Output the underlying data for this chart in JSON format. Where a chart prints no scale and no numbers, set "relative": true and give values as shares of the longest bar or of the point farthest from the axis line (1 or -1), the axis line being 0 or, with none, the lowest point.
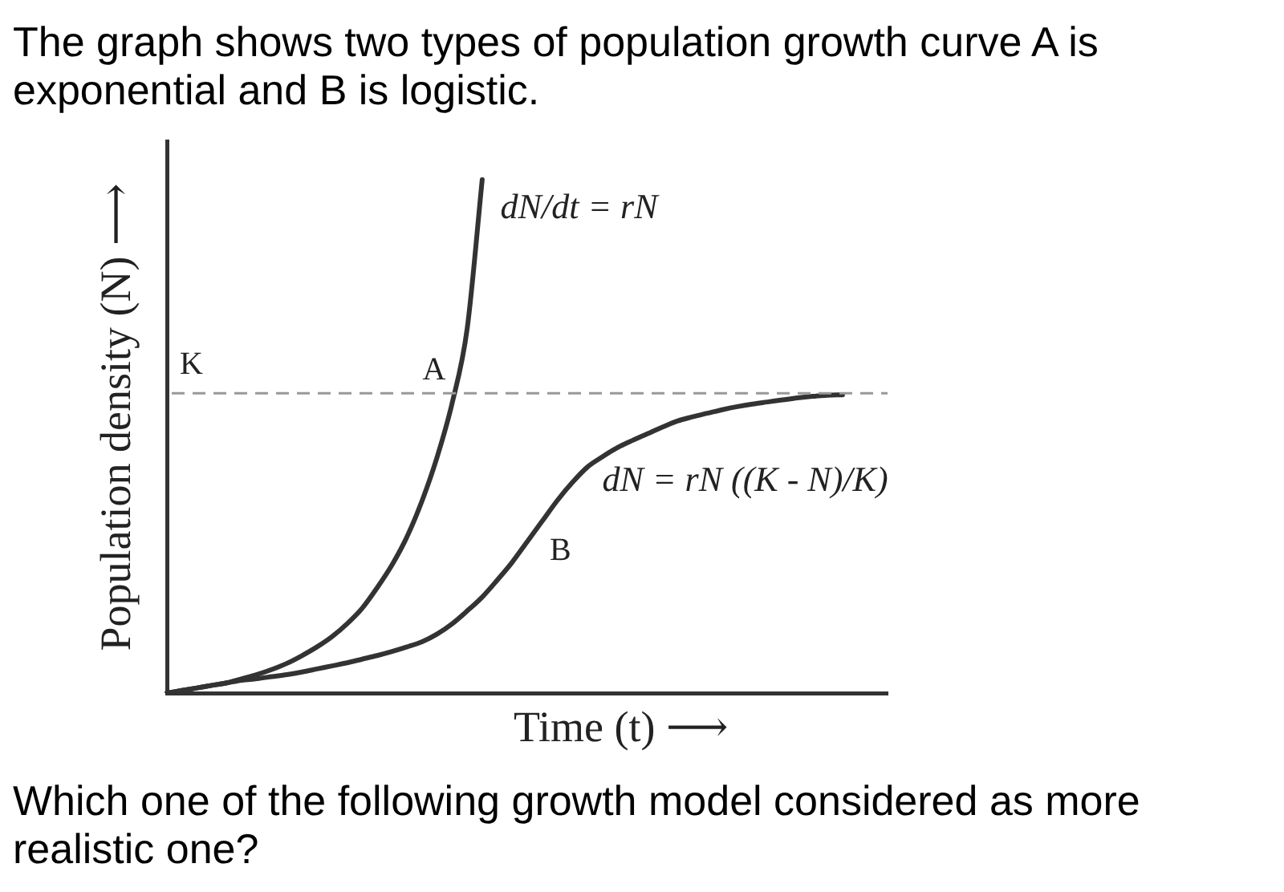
{
  "chart_data": {
    "type": "line",
    "title": "The graph shows two types of population growth curve A is exponential and B is logistic.",
    "xlabel": "Time (t) ⟶",
    "ylabel": "Population density (N) ⟶",
    "relative": true,
    "categories": [
      null,
      null,
      null,
      null,
      null,
      null,
      null,
      null,
      null,
      null,
      null,
      null,
      null,
      null,
      null,
      null,
      null,
      null,
      null,
      null,
      null,
      null,
      null,
      null,
      null,
      null,
      null,
      null,
      null,
      null,
      null,
      null,
      null,
      null,
      null,
      null,
      null,
      null,
      null,
      null,
      null,
      null,
      null,
      null,
      null,
      null,
      null,
      null,
      null
    ],
    "series": [
      {
        "name": "A",
        "color": "#333333",
        "values": [
          0,
          0.005,
          0.01,
          0.015,
          0.02,
          0.028,
          0.036,
          0.046,
          0.058,
          0.073,
          0.09,
          0.11,
          0.135,
          0.165,
          0.205,
          0.25,
          0.305,
          0.375,
          0.46,
          0.565,
          0.71,
          1,
          null,
          null,
          null,
          null,
          null,
          null,
          null,
          null,
          null,
          null,
          null,
          null,
          null,
          null,
          null,
          null,
          null,
          null,
          null,
          null,
          null,
          null,
          null,
          null,
          null,
          null,
          null
        ]
      },
      {
        "name": "B",
        "color": "#333333",
        "values": [
          0,
          0.005,
          0.01,
          0.015,
          0.02,
          0.025,
          0.028,
          0.032,
          0.036,
          0.041,
          0.047,
          0.053,
          0.059,
          0.066,
          0.073,
          0.081,
          0.09,
          0.1,
          0.115,
          0.135,
          0.16,
          0.187,
          0.22,
          0.255,
          0.295,
          0.335,
          0.375,
          0.41,
          0.44,
          0.46,
          0.478,
          0.492,
          0.505,
          0.518,
          0.53,
          0.538,
          0.545,
          0.552,
          0.558,
          0.563,
          0.567,
          0.571,
          0.575,
          0.578,
          0.58,
          0.581,
          null,
          null,
          null
        ]
      }
    ],
    "ref_lines": [
      {
        "axis": "y",
        "value": 0.584,
        "label": "K",
        "color": "#999999",
        "line_style": "dashed"
      }
    ],
    "annotations": [
      "dN/dt = rN",
      "dN = rN ((K - N)/K)",
      "Which one of the following growth model considered as more realistic one?"
    ]
  }
}
